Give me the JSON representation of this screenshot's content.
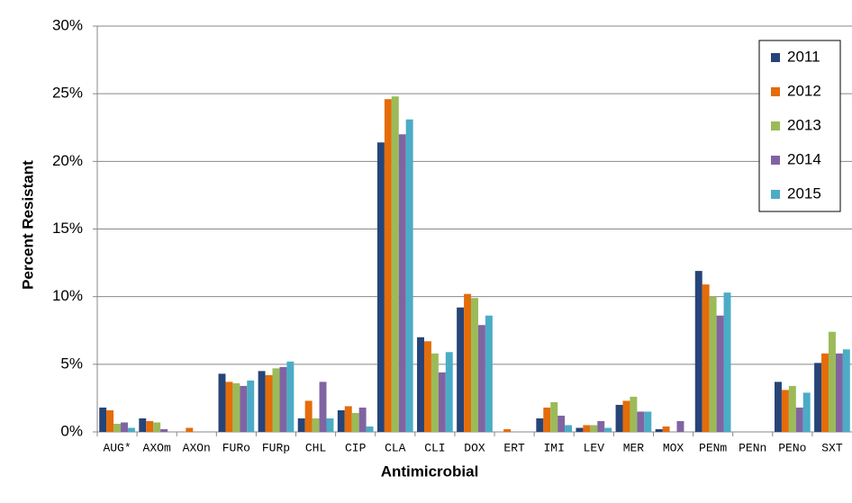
{
  "chart_data": {
    "type": "bar",
    "x_label": "Antimicrobial",
    "y_label": "Percent Resistant",
    "categories": [
      "AUG*",
      "AXOm",
      "AXOn",
      "FURo",
      "FURp",
      "CHL",
      "CIP",
      "CLA",
      "CLI",
      "DOX",
      "ERT",
      "IMI",
      "LEV",
      "MER",
      "MOX",
      "PENm",
      "PENn",
      "PENo",
      "SXT"
    ],
    "series": [
      {
        "name": "2011",
        "color": "#264478",
        "values": [
          1.8,
          1.0,
          0,
          4.3,
          4.5,
          1.0,
          1.6,
          21.4,
          7.0,
          9.2,
          0,
          1.0,
          0.3,
          2.0,
          0.2,
          11.9,
          0,
          3.7,
          5.1
        ]
      },
      {
        "name": "2012",
        "color": "#e46c0a",
        "values": [
          1.6,
          0.8,
          0.3,
          3.7,
          4.2,
          2.3,
          1.9,
          24.6,
          6.7,
          10.2,
          0.2,
          1.8,
          0.5,
          2.3,
          0.4,
          10.9,
          0,
          3.1,
          5.8
        ]
      },
      {
        "name": "2013",
        "color": "#9bbb59",
        "values": [
          0.6,
          0.7,
          0,
          3.6,
          4.7,
          1.0,
          1.4,
          24.8,
          5.8,
          9.9,
          0,
          2.2,
          0.5,
          2.6,
          0,
          10.0,
          0,
          3.4,
          7.4
        ]
      },
      {
        "name": "2014",
        "color": "#8064a2",
        "values": [
          0.7,
          0.2,
          0,
          3.4,
          4.8,
          3.7,
          1.8,
          22.0,
          4.4,
          7.9,
          0,
          1.2,
          0.8,
          1.5,
          0.8,
          8.6,
          0,
          1.8,
          5.8
        ]
      },
      {
        "name": "2015",
        "color": "#4bacc6",
        "values": [
          0.3,
          0,
          0,
          3.8,
          5.2,
          1.0,
          0.4,
          23.1,
          5.9,
          8.6,
          0,
          0.5,
          0.3,
          1.5,
          0,
          10.3,
          0,
          2.9,
          6.1
        ]
      }
    ],
    "ylim": [
      0,
      30
    ],
    "yticks": [
      {
        "value": 0,
        "label": "0%"
      },
      {
        "value": 5,
        "label": "5%"
      },
      {
        "value": 10,
        "label": "10%"
      },
      {
        "value": 15,
        "label": "15%"
      },
      {
        "value": 20,
        "label": "20%"
      },
      {
        "value": 25,
        "label": "25%"
      },
      {
        "value": 30,
        "label": "30%"
      }
    ],
    "grid": true,
    "legend": "upper right"
  }
}
